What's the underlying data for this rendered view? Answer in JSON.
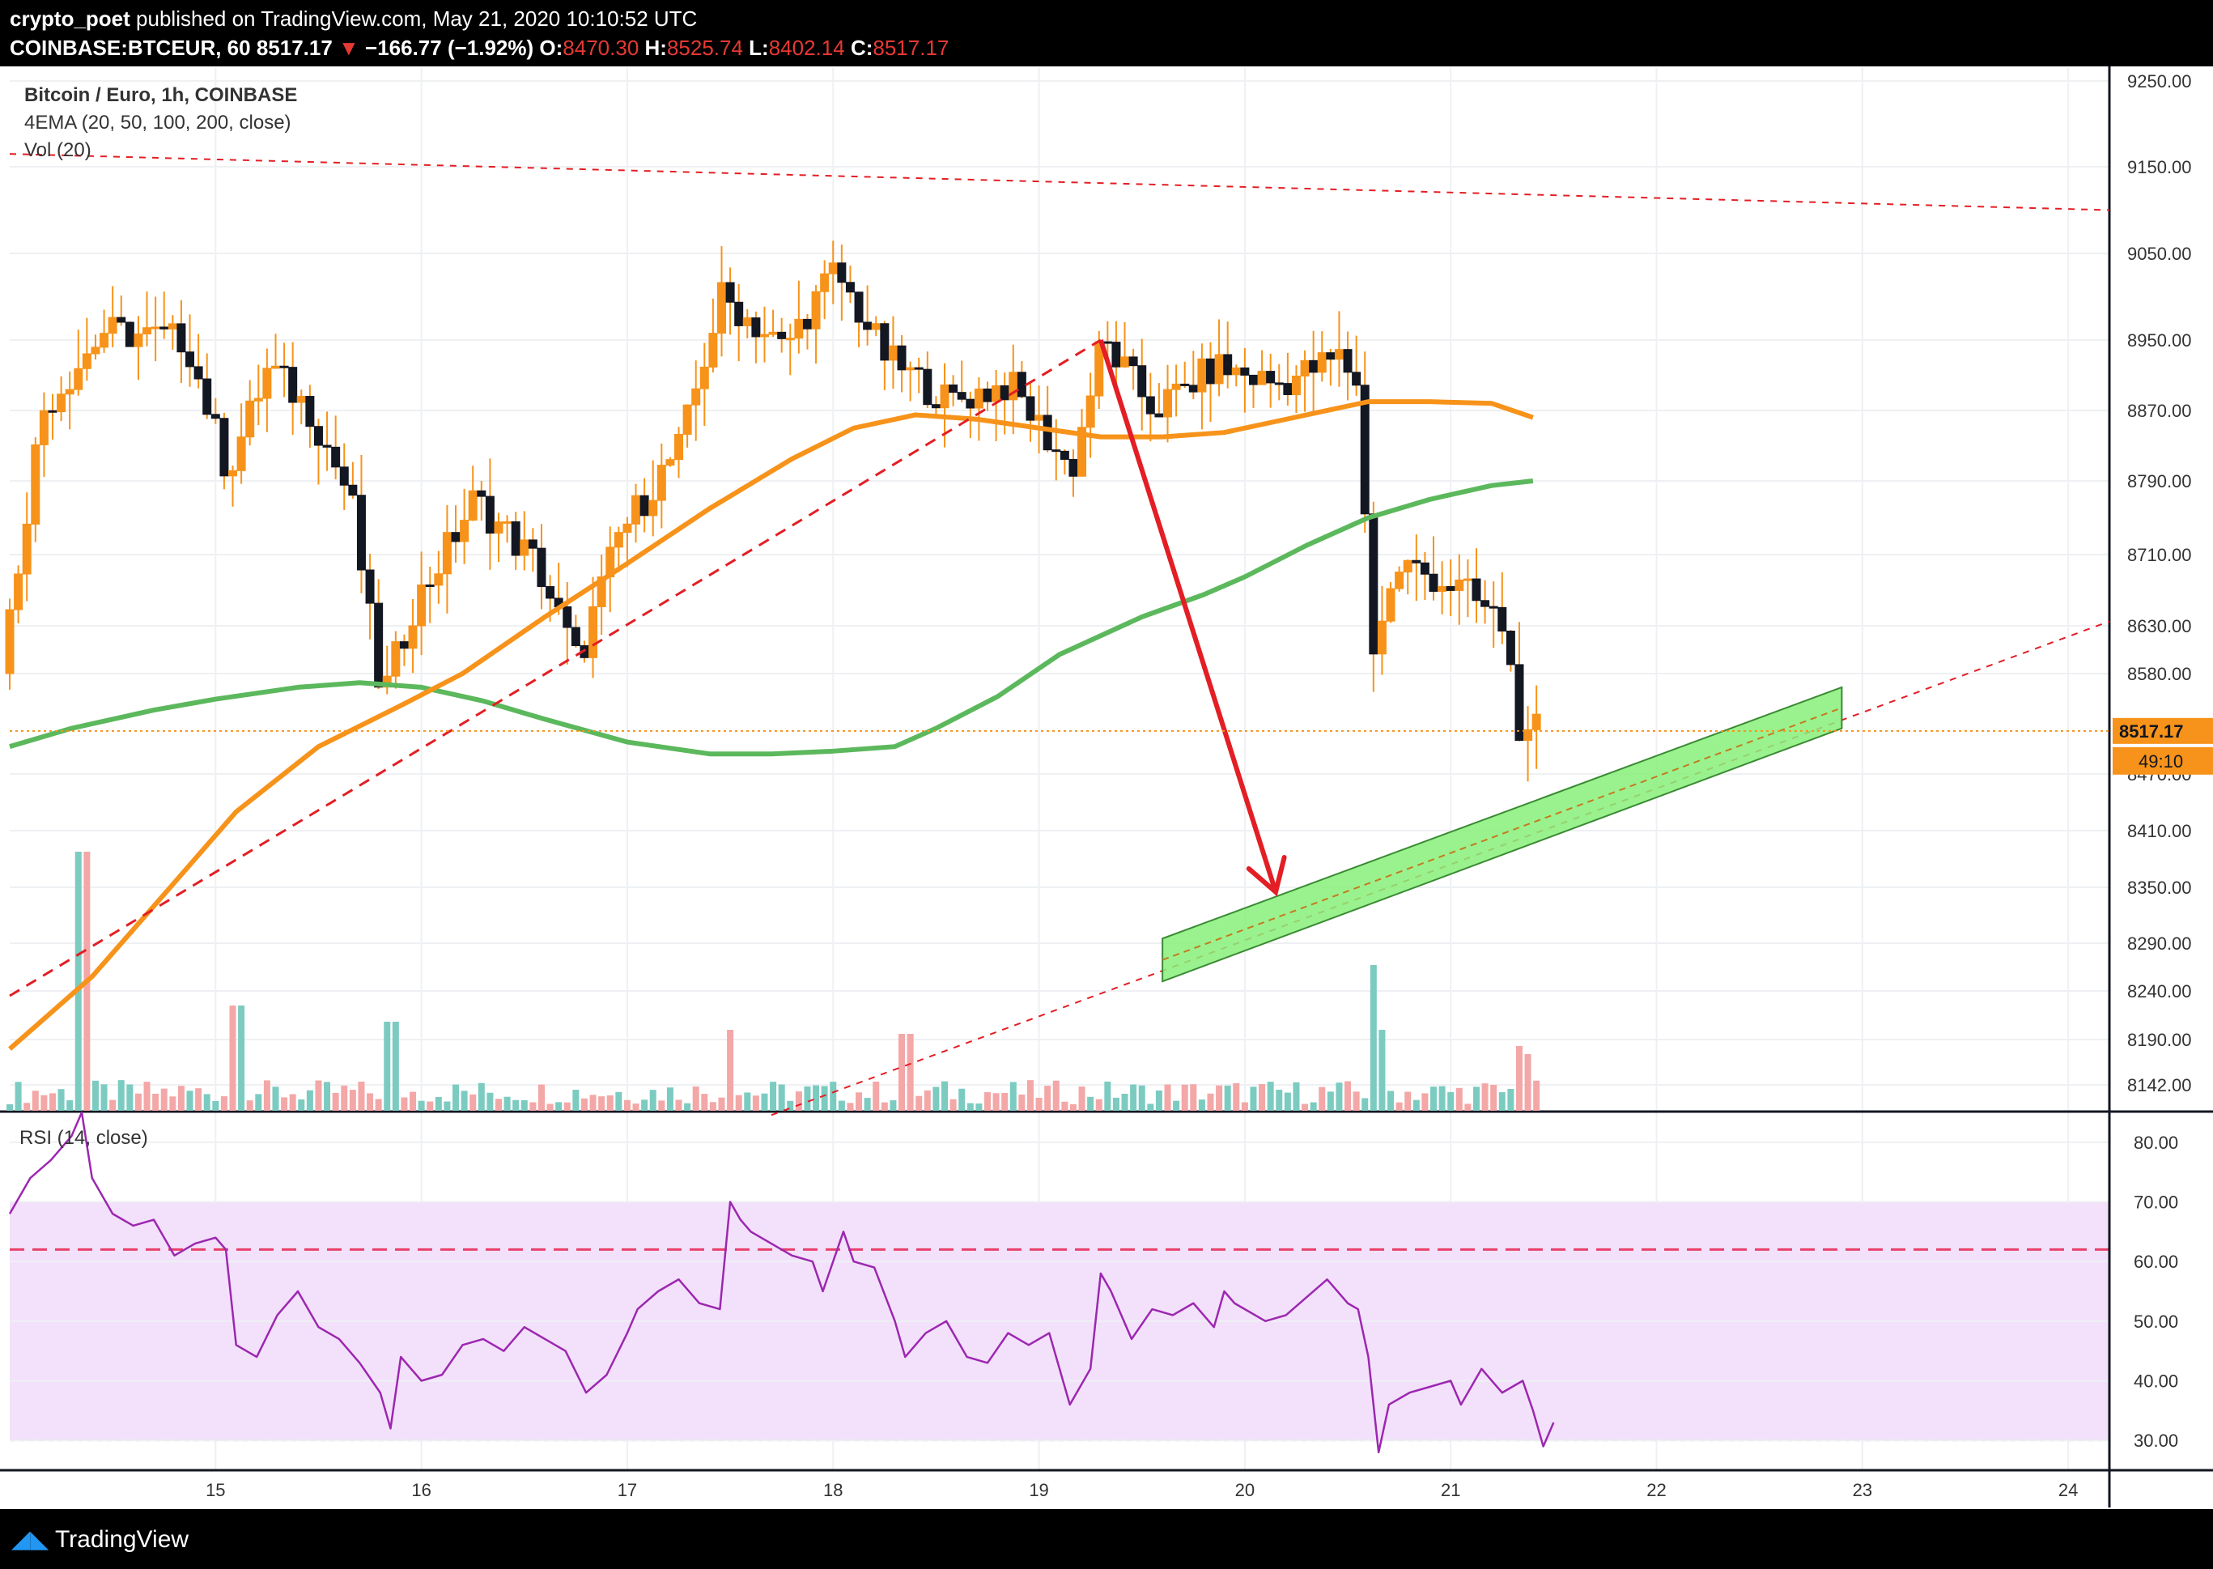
{
  "header": {
    "publisher": "crypto_poet",
    "published_text": "published on TradingView.com, May 21, 2020 10:10:52 UTC",
    "symbol": "COINBASE:BTCEUR, 60",
    "last": "8517.17",
    "change": "−166.77 (−1.92%)",
    "open_label": "O:",
    "open": "8470.30",
    "high_label": "H:",
    "high": "8525.74",
    "low_label": "L:",
    "low": "8402.14",
    "close_label": "C:",
    "close": "8517.17"
  },
  "legend": {
    "title": "Bitcoin / Euro, 1h, COINBASE",
    "ema": "4EMA (20, 50, 100, 200, close)",
    "vol": "Vol (20)",
    "rsi": "RSI (14, close)"
  },
  "price_badge": {
    "value": "8517.17",
    "countdown": "49:10"
  },
  "footer": {
    "brand": "TradingView"
  },
  "colors": {
    "up": "#f7931a",
    "down": "#131722",
    "ema_fast": "#f7931a",
    "ema_slow": "#5cb85c",
    "trend": "#e31e24",
    "zone": "#88f07a",
    "rsi_line": "#9c27b0",
    "rsi_band": "#f3e1fb",
    "vol_up": "#7ccbc1",
    "vol_down": "#f3a7a7"
  },
  "chart_data": [
    {
      "type": "candlestick",
      "pair": "BTC/EUR",
      "timeframe": "1h",
      "x_ticks": [
        "15",
        "16",
        "17",
        "18",
        "19",
        "20",
        "21",
        "22",
        "23",
        "24"
      ],
      "y_ticks": [
        9250,
        9150,
        9050,
        8950,
        8870,
        8790,
        8710,
        8630,
        8580,
        8470,
        8410,
        8350,
        8290,
        8240,
        8190,
        8142
      ],
      "ylim": [
        8110,
        9260
      ],
      "series": [
        {
          "name": "EMA fast",
          "points": [
            [
              14.0,
              8180
            ],
            [
              14.4,
              8255
            ],
            [
              14.8,
              8355
            ],
            [
              15.1,
              8430
            ],
            [
              15.5,
              8500
            ],
            [
              15.9,
              8545
            ],
            [
              16.2,
              8580
            ],
            [
              16.6,
              8640
            ],
            [
              17.0,
              8700
            ],
            [
              17.4,
              8760
            ],
            [
              17.8,
              8815
            ],
            [
              18.1,
              8850
            ],
            [
              18.4,
              8865
            ],
            [
              18.7,
              8860
            ],
            [
              19.0,
              8850
            ],
            [
              19.3,
              8840
            ],
            [
              19.6,
              8840
            ],
            [
              19.9,
              8845
            ],
            [
              20.2,
              8860
            ],
            [
              20.6,
              8880
            ],
            [
              20.9,
              8880
            ],
            [
              21.2,
              8878
            ],
            [
              21.4,
              8862
            ]
          ]
        },
        {
          "name": "EMA slow",
          "points": [
            [
              14.0,
              8500
            ],
            [
              14.3,
              8520
            ],
            [
              14.7,
              8540
            ],
            [
              15.0,
              8552
            ],
            [
              15.4,
              8565
            ],
            [
              15.7,
              8570
            ],
            [
              16.0,
              8565
            ],
            [
              16.3,
              8550
            ],
            [
              16.6,
              8530
            ],
            [
              17.0,
              8505
            ],
            [
              17.4,
              8492
            ],
            [
              17.7,
              8492
            ],
            [
              18.0,
              8495
            ],
            [
              18.3,
              8500
            ],
            [
              18.5,
              8520
            ],
            [
              18.8,
              8555
            ],
            [
              19.1,
              8600
            ],
            [
              19.5,
              8640
            ],
            [
              19.8,
              8665
            ],
            [
              20.0,
              8685
            ],
            [
              20.3,
              8720
            ],
            [
              20.6,
              8750
            ],
            [
              20.9,
              8770
            ],
            [
              21.2,
              8785
            ],
            [
              21.4,
              8790
            ]
          ]
        },
        {
          "name": "Trend line up",
          "points": [
            [
              14.0,
              8235
            ],
            [
              19.3,
              8950
            ]
          ]
        },
        {
          "name": "Trend line lower",
          "points": [
            [
              17.7,
              8110
            ],
            [
              24.2,
              8635
            ]
          ]
        },
        {
          "name": "Resistance",
          "points": [
            [
              14.0,
              9165
            ],
            [
              24.2,
              9100
            ]
          ]
        },
        {
          "name": "Arrow",
          "points": [
            [
              19.3,
              8950
            ],
            [
              20.15,
              8345
            ]
          ]
        }
      ],
      "zone": {
        "label": "",
        "lower": [
          [
            19.6,
            8250
          ],
          [
            22.9,
            8520
          ]
        ],
        "upper": [
          [
            19.6,
            8295
          ],
          [
            22.9,
            8565
          ]
        ]
      },
      "last_price": 8517.17
    },
    {
      "type": "line",
      "title": "RSI (14, close)",
      "ylim": [
        25,
        85
      ],
      "y_ticks": [
        80,
        70,
        60,
        50,
        40,
        30
      ],
      "levels": [
        70,
        62,
        30
      ],
      "series": [
        {
          "name": "RSI",
          "values": [
            [
              14.0,
              68
            ],
            [
              14.1,
              74
            ],
            [
              14.2,
              77
            ],
            [
              14.3,
              81
            ],
            [
              14.35,
              85
            ],
            [
              14.4,
              74
            ],
            [
              14.5,
              68
            ],
            [
              14.6,
              66
            ],
            [
              14.7,
              67
            ],
            [
              14.8,
              61
            ],
            [
              14.9,
              63
            ],
            [
              15.0,
              64
            ],
            [
              15.05,
              62
            ],
            [
              15.1,
              46
            ],
            [
              15.2,
              44
            ],
            [
              15.3,
              51
            ],
            [
              15.4,
              55
            ],
            [
              15.5,
              49
            ],
            [
              15.6,
              47
            ],
            [
              15.7,
              43
            ],
            [
              15.8,
              38
            ],
            [
              15.85,
              32
            ],
            [
              15.9,
              44
            ],
            [
              16.0,
              40
            ],
            [
              16.1,
              41
            ],
            [
              16.2,
              46
            ],
            [
              16.3,
              47
            ],
            [
              16.4,
              45
            ],
            [
              16.5,
              49
            ],
            [
              16.6,
              47
            ],
            [
              16.7,
              45
            ],
            [
              16.8,
              38
            ],
            [
              16.9,
              41
            ],
            [
              17.0,
              48
            ],
            [
              17.05,
              52
            ],
            [
              17.15,
              55
            ],
            [
              17.25,
              57
            ],
            [
              17.35,
              53
            ],
            [
              17.45,
              52
            ],
            [
              17.5,
              70
            ],
            [
              17.55,
              67
            ],
            [
              17.6,
              65
            ],
            [
              17.7,
              63
            ],
            [
              17.8,
              61
            ],
            [
              17.9,
              60
            ],
            [
              17.95,
              55
            ],
            [
              18.05,
              65
            ],
            [
              18.1,
              60
            ],
            [
              18.2,
              59
            ],
            [
              18.3,
              50
            ],
            [
              18.35,
              44
            ],
            [
              18.45,
              48
            ],
            [
              18.55,
              50
            ],
            [
              18.65,
              44
            ],
            [
              18.75,
              43
            ],
            [
              18.85,
              48
            ],
            [
              18.95,
              46
            ],
            [
              19.05,
              48
            ],
            [
              19.15,
              36
            ],
            [
              19.25,
              42
            ],
            [
              19.3,
              58
            ],
            [
              19.35,
              55
            ],
            [
              19.45,
              47
            ],
            [
              19.55,
              52
            ],
            [
              19.65,
              51
            ],
            [
              19.75,
              53
            ],
            [
              19.85,
              49
            ],
            [
              19.9,
              55
            ],
            [
              19.95,
              53
            ],
            [
              20.1,
              50
            ],
            [
              20.2,
              51
            ],
            [
              20.3,
              54
            ],
            [
              20.4,
              57
            ],
            [
              20.5,
              53
            ],
            [
              20.55,
              52
            ],
            [
              20.6,
              44
            ],
            [
              20.65,
              28
            ],
            [
              20.7,
              36
            ],
            [
              20.8,
              38
            ],
            [
              20.9,
              39
            ],
            [
              21.0,
              40
            ],
            [
              21.05,
              36
            ],
            [
              21.15,
              42
            ],
            [
              21.25,
              38
            ],
            [
              21.35,
              40
            ],
            [
              21.4,
              35
            ],
            [
              21.45,
              29
            ],
            [
              21.5,
              33
            ]
          ]
        }
      ]
    }
  ]
}
